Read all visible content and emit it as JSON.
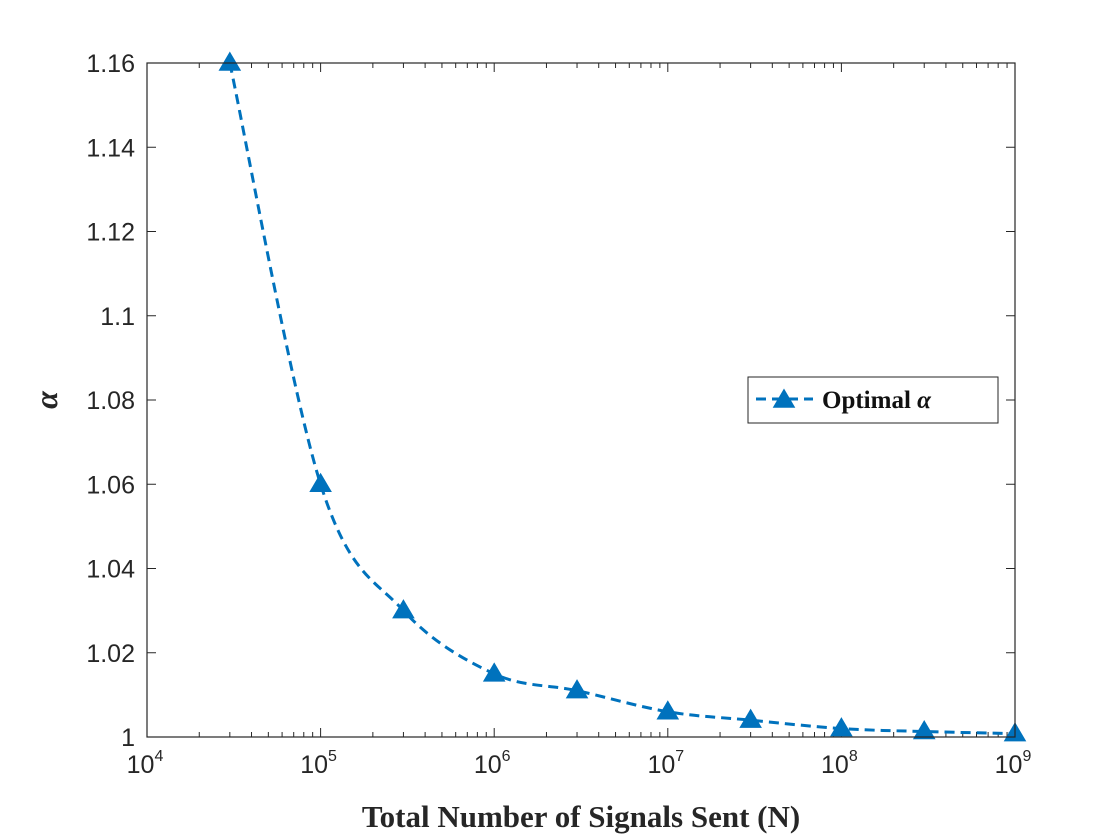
{
  "chart_data": {
    "type": "line",
    "title": "",
    "xlabel": "Total Number of Signals Sent (N)",
    "ylabel": "α",
    "xscale": "log",
    "xlim": [
      10000,
      1000000000
    ],
    "ylim": [
      1,
      1.16
    ],
    "x_ticks": [
      {
        "base": "10",
        "exp": "4"
      },
      {
        "base": "10",
        "exp": "5"
      },
      {
        "base": "10",
        "exp": "6"
      },
      {
        "base": "10",
        "exp": "7"
      },
      {
        "base": "10",
        "exp": "8"
      },
      {
        "base": "10",
        "exp": "9"
      }
    ],
    "y_ticks": [
      "1",
      "1.02",
      "1.04",
      "1.06",
      "1.08",
      "1.1",
      "1.12",
      "1.14",
      "1.16"
    ],
    "series": [
      {
        "name": "Optimal α",
        "legend_text": "Optimal ",
        "legend_symbol": "α",
        "color": "#0072BD",
        "line_style": "dashed",
        "marker": "triangle-up",
        "x": [
          30000,
          100000,
          300000,
          1000000,
          3000000,
          10000000,
          30000000,
          100000000,
          300000000,
          1000000000
        ],
        "y": [
          1.16,
          1.06,
          1.03,
          1.015,
          1.011,
          1.006,
          1.004,
          1.002,
          1.0013,
          1.0008
        ]
      }
    ],
    "legend_position": "right",
    "grid": false
  }
}
